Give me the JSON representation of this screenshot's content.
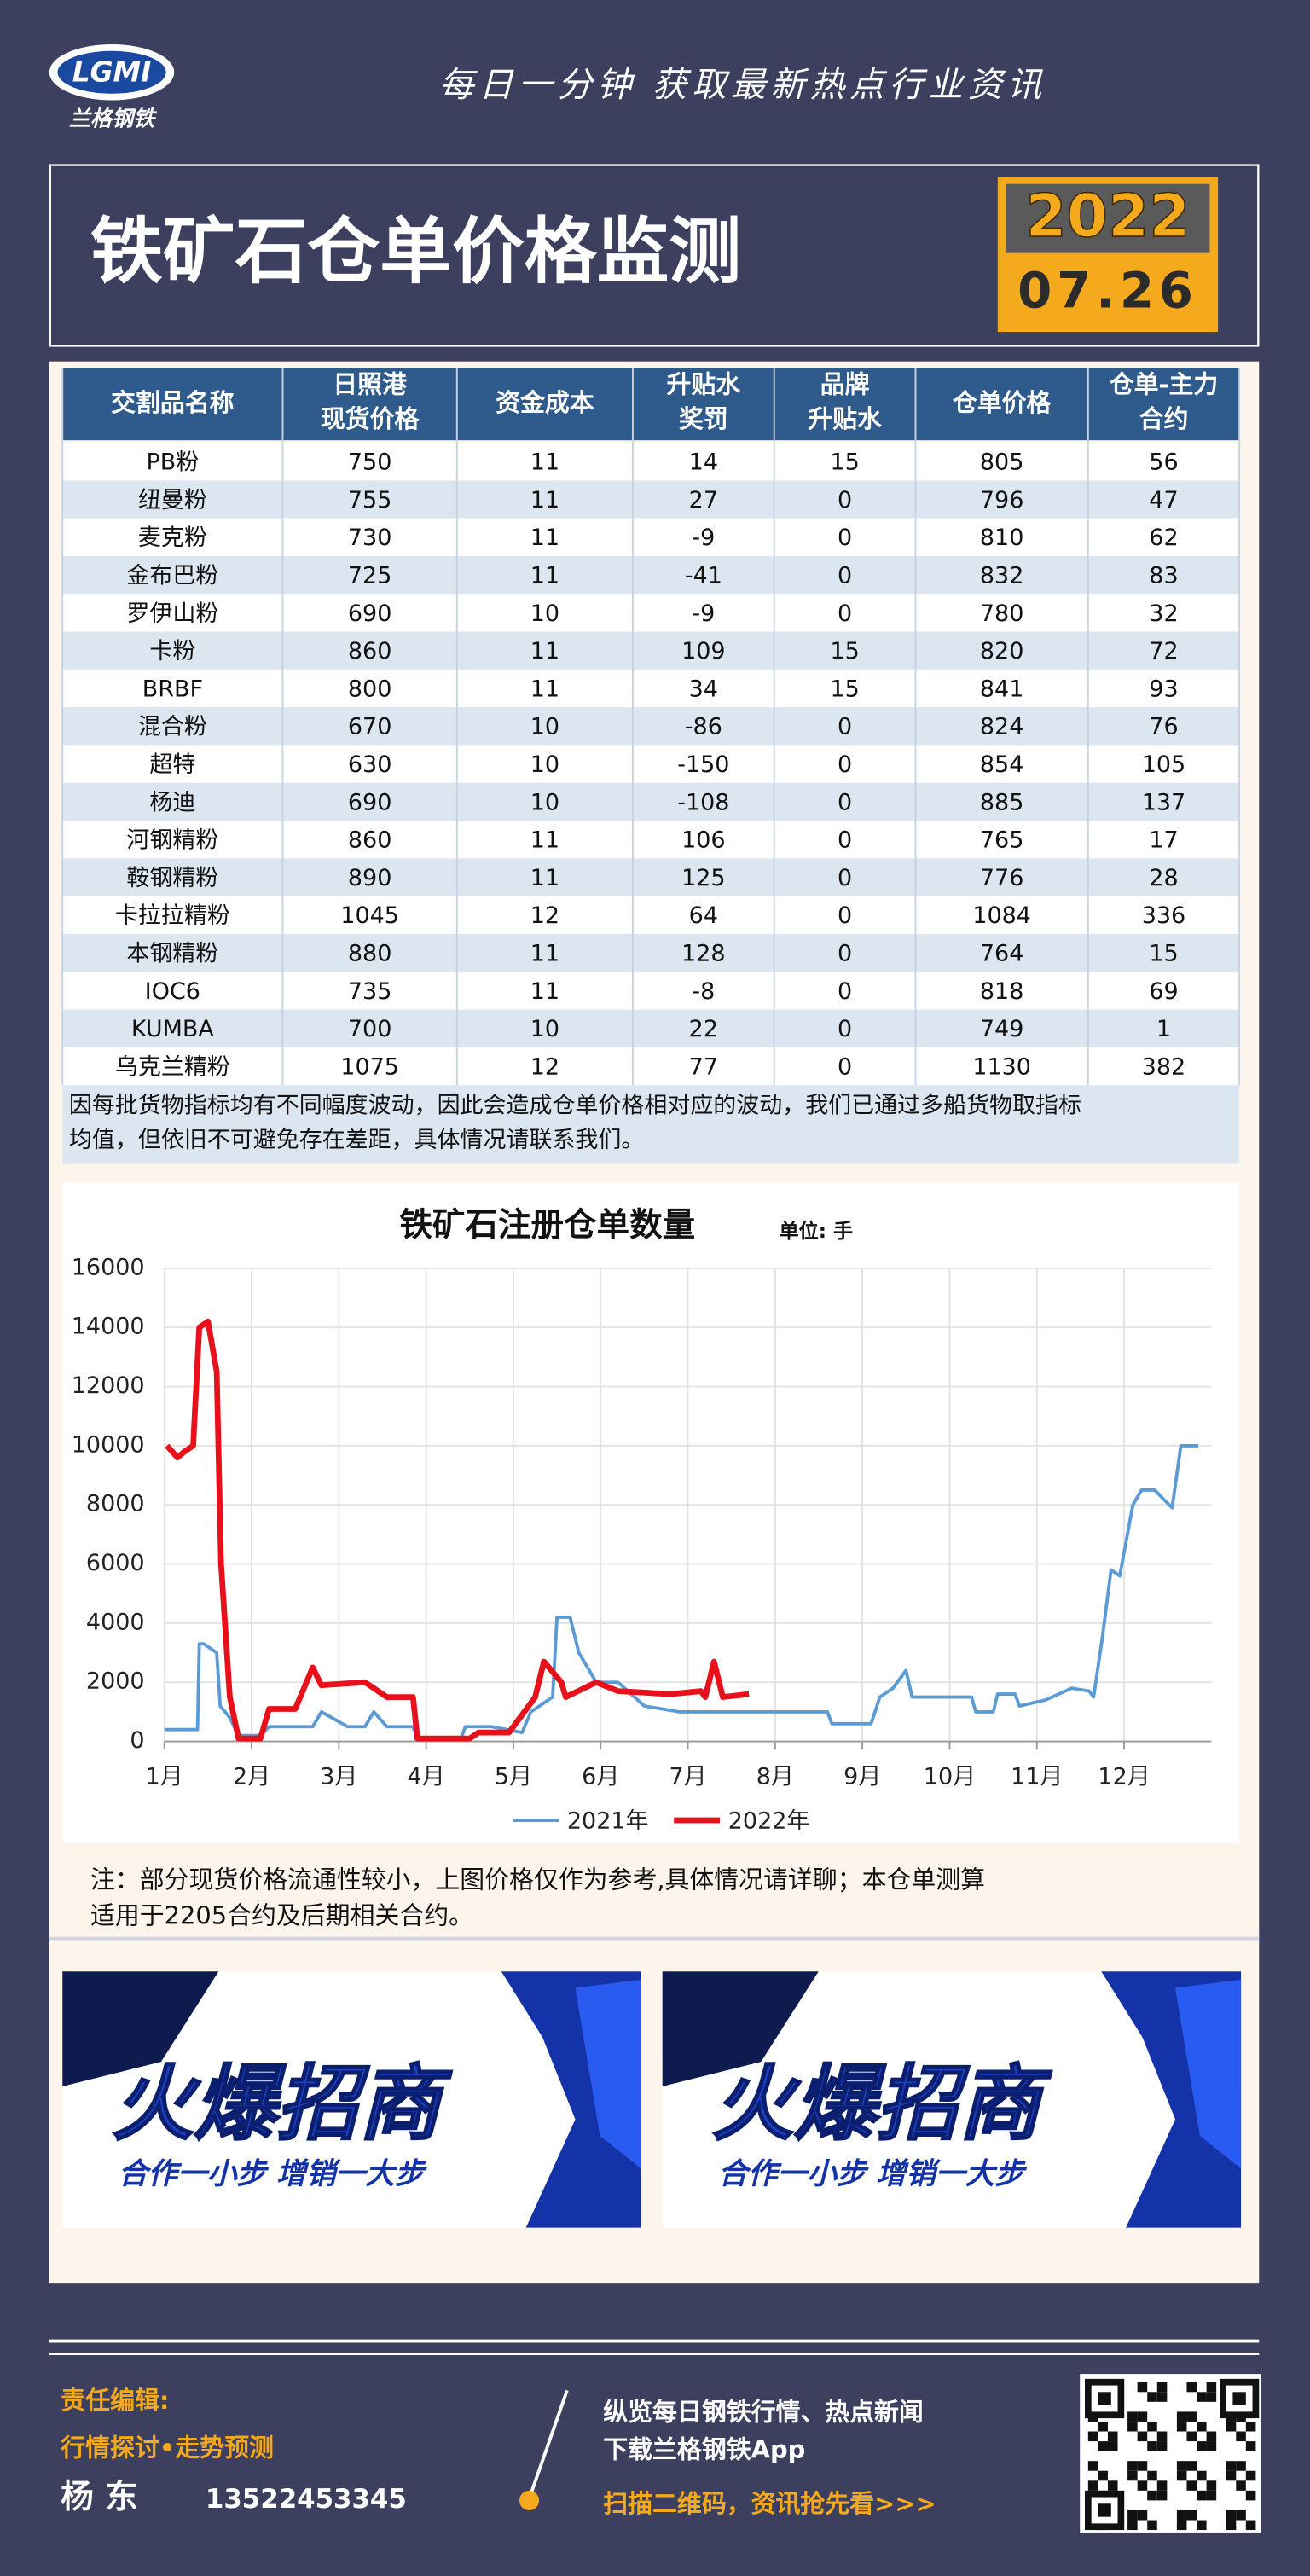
{
  "header": {
    "logo": "LGMI",
    "brand": "兰格钢铁",
    "tagline": "每日一分钟  获取最新热点行业资讯",
    "title": "铁矿石仓单价格监测",
    "year": "2022",
    "date": "07.26"
  },
  "table": {
    "header": [
      [
        "交割品名称"
      ],
      [
        "日照港",
        "现货价格"
      ],
      [
        "资金成本"
      ],
      [
        "升贴水",
        "奖罚"
      ],
      [
        "品牌",
        "升贴水"
      ],
      [
        "仓单价格"
      ],
      [
        "仓单-主力",
        "合约"
      ]
    ],
    "rows": [
      [
        "PB粉",
        750,
        11,
        14,
        15,
        805,
        56
      ],
      [
        "纽曼粉",
        755,
        11,
        27,
        0,
        796,
        47
      ],
      [
        "麦克粉",
        730,
        11,
        -9,
        0,
        810,
        62
      ],
      [
        "金布巴粉",
        725,
        11,
        -41,
        0,
        832,
        83
      ],
      [
        "罗伊山粉",
        690,
        10,
        -9,
        0,
        780,
        32
      ],
      [
        "卡粉",
        860,
        11,
        109,
        15,
        820,
        72
      ],
      [
        "BRBF",
        800,
        11,
        34,
        15,
        841,
        93
      ],
      [
        "混合粉",
        670,
        10,
        -86,
        0,
        824,
        76
      ],
      [
        "超特",
        630,
        10,
        -150,
        0,
        854,
        105
      ],
      [
        "杨迪",
        690,
        10,
        -108,
        0,
        885,
        137
      ],
      [
        "河钢精粉",
        860,
        11,
        106,
        0,
        765,
        17
      ],
      [
        "鞍钢精粉",
        890,
        11,
        125,
        0,
        776,
        28
      ],
      [
        "卡拉拉精粉",
        1045,
        12,
        64,
        0,
        1084,
        336
      ],
      [
        "本钢精粉",
        880,
        11,
        128,
        0,
        764,
        15
      ],
      [
        "IOC6",
        735,
        11,
        -8,
        0,
        818,
        69
      ],
      [
        "KUMBA",
        700,
        10,
        22,
        0,
        749,
        1
      ],
      [
        "乌克兰精粉",
        1075,
        12,
        77,
        0,
        1130,
        382
      ]
    ],
    "note": [
      "因每批货物指标均有不同幅度波动，因此会造成仓单价格相对应的波动，我们已通过多船货物取指标",
      "均值，但依旧不可避免存在差距，具体情况请联系我们。"
    ]
  },
  "chart_data": {
    "type": "line",
    "title": "铁矿石注册仓单数量",
    "unit": "单位: 手",
    "xlim": [
      1,
      13
    ],
    "ylim": [
      0,
      16000
    ],
    "grid": true,
    "legend": "bottom",
    "xticks": [
      {
        "value": 1,
        "label": "1月"
      },
      {
        "value": 2,
        "label": "2月"
      },
      {
        "value": 3,
        "label": "3月"
      },
      {
        "value": 4,
        "label": "4月"
      },
      {
        "value": 5,
        "label": "5月"
      },
      {
        "value": 6,
        "label": "6月"
      },
      {
        "value": 7,
        "label": "7月"
      },
      {
        "value": 8,
        "label": "8月"
      },
      {
        "value": 9,
        "label": "9月"
      },
      {
        "value": 10,
        "label": "10月"
      },
      {
        "value": 11,
        "label": "11月"
      },
      {
        "value": 12,
        "label": "12月"
      }
    ],
    "yticks": [
      0,
      2000,
      4000,
      6000,
      8000,
      10000,
      12000,
      14000,
      16000
    ],
    "series": [
      {
        "name": "2021年",
        "color": "#5b9bd5",
        "x": [
          1,
          1.38,
          1.4,
          1.45,
          1.6,
          1.64,
          1.75,
          1.85,
          2.1,
          2.2,
          2.7,
          2.8,
          3.1,
          3.3,
          3.4,
          3.55,
          3.85,
          3.9,
          4.4,
          4.45,
          4.75,
          5.1,
          5.2,
          5.45,
          5.5,
          5.65,
          5.75,
          5.95,
          6.2,
          6.5,
          6.9,
          7.7,
          8.6,
          8.65,
          9.1,
          9.2,
          9.35,
          9.5,
          9.57,
          10.25,
          10.3,
          10.5,
          10.55,
          10.75,
          10.8,
          11.1,
          11.4,
          11.6,
          11.65,
          11.75,
          11.85,
          11.95,
          12.1,
          12.2,
          12.35,
          12.45,
          12.55,
          12.65,
          12.85
        ],
        "values": [
          400,
          400,
          3300,
          3300,
          3000,
          1200,
          800,
          200,
          200,
          500,
          500,
          1000,
          500,
          500,
          1000,
          500,
          500,
          100,
          100,
          500,
          500,
          300,
          1000,
          1500,
          4200,
          4200,
          3000,
          2000,
          2000,
          1200,
          1000,
          1000,
          1000,
          600,
          600,
          1500,
          1800,
          2400,
          1500,
          1500,
          1000,
          1000,
          1600,
          1600,
          1200,
          1400,
          1800,
          1700,
          1500,
          3500,
          5800,
          5600,
          8000,
          8500,
          8500,
          8200,
          7900,
          10000,
          10000
        ]
      },
      {
        "name": "2022年",
        "color": "#e8101a",
        "x": [
          1.03,
          1.15,
          1.23,
          1.33,
          1.4,
          1.5,
          1.6,
          1.65,
          1.75,
          1.85,
          2.1,
          2.2,
          2.5,
          2.7,
          2.8,
          3.3,
          3.55,
          3.85,
          3.9,
          4.5,
          4.6,
          4.95,
          5.25,
          5.35,
          5.55,
          5.6,
          5.95,
          6.2,
          6.8,
          7.15,
          7.2,
          7.3,
          7.4,
          7.7
        ],
        "values": [
          10000,
          9600,
          9800,
          10000,
          14000,
          14200,
          12500,
          6000,
          1500,
          100,
          100,
          1100,
          1100,
          2500,
          1900,
          2000,
          1500,
          1500,
          100,
          100,
          300,
          300,
          1500,
          2700,
          2000,
          1500,
          2000,
          1700,
          1600,
          1700,
          1500,
          2700,
          1500,
          1600
        ]
      }
    ]
  },
  "chart_note": [
    "注：部分现货价格流通性较小，上图价格仅作为参考,具体情况请详聊；本仓单测算",
    "适用于2205合约及后期相关合约。"
  ],
  "ads": [
    {
      "title": "火爆招商",
      "slogan": "合作一小步  增销一大步"
    },
    {
      "title": "火爆招商",
      "slogan": "合作一小步  增销一大步"
    }
  ],
  "footer": {
    "editor_label": "责任编辑:",
    "topic": "行情探讨•走势预测",
    "editor": "杨 东",
    "phone": "13522453345",
    "promo": [
      "纵览每日钢铁行情、热点新闻",
      "下载兰格钢铁App"
    ],
    "scan": "扫描二维码，资讯抢先看>>>"
  }
}
